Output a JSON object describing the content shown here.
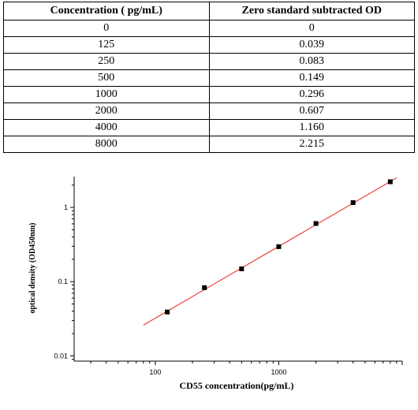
{
  "table": {
    "headers": [
      "Concentration ( pg/mL)",
      "Zero standard subtracted OD"
    ],
    "rows": [
      [
        "0",
        "0"
      ],
      [
        "125",
        "0.039"
      ],
      [
        "250",
        "0.083"
      ],
      [
        "500",
        "0.149"
      ],
      [
        "1000",
        "0.296"
      ],
      [
        "2000",
        "0.607"
      ],
      [
        "4000",
        "1.160"
      ],
      [
        "8000",
        "2.215"
      ]
    ]
  },
  "chart_data": {
    "type": "scatter",
    "title": "",
    "xlabel": "CD55  concentration(pg/mL)",
    "ylabel": "optical density (OD450nm)",
    "x_scale": "log",
    "y_scale": "log",
    "xlim": [
      22,
      10000
    ],
    "ylim": [
      0.0085,
      2.6
    ],
    "x_ticks": [
      100,
      1000
    ],
    "x_tick_labels": [
      "100",
      "1000"
    ],
    "y_ticks": [
      0.01,
      0.1,
      1
    ],
    "y_tick_labels": [
      "0.01",
      "0.1",
      "1"
    ],
    "grid": false,
    "legend": "none",
    "series": [
      {
        "x": [
          125,
          250,
          500,
          1000,
          2000,
          4000,
          8000
        ],
        "y": [
          0.039,
          0.083,
          0.149,
          0.296,
          0.607,
          1.16,
          2.215
        ],
        "marker_color": "#000000"
      }
    ],
    "fit_line": {
      "x": [
        80,
        9000
      ],
      "y": [
        0.026,
        2.5
      ],
      "color": "#e8231f"
    }
  }
}
